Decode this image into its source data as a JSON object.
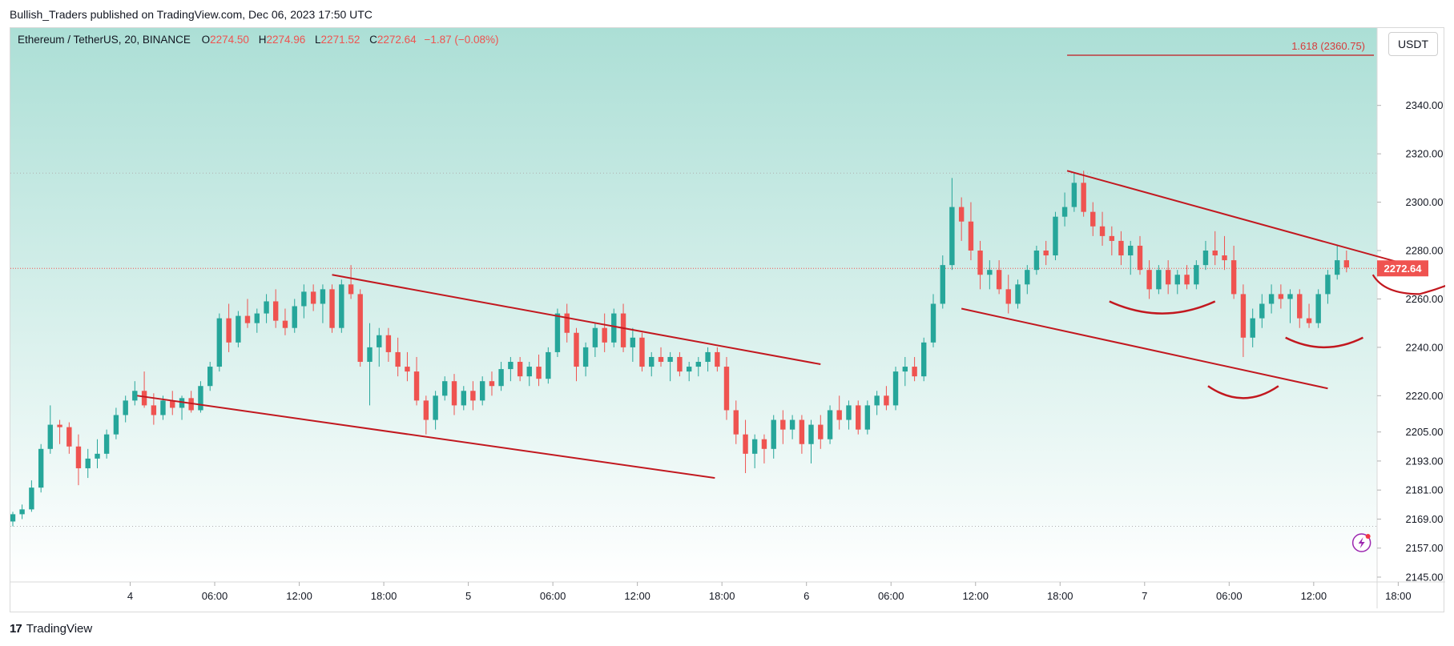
{
  "caption": "Bullish_Traders published on TradingView.com, Dec 06, 2023 17:50 UTC",
  "brand": "TradingView",
  "currency": "USDT",
  "legend": {
    "symbol": "Ethereum / TetherUS, 20, BINANCE",
    "o_label": "O",
    "o_value": "2274.50",
    "h_label": "H",
    "h_value": "2274.96",
    "l_label": "L",
    "l_value": "2271.52",
    "c_label": "C",
    "c_value": "2272.64",
    "change": "−1.87 (−0.08%)"
  },
  "colors": {
    "up": "#26a69a",
    "down": "#ef5350",
    "drawing": "#c2181f",
    "label": "#d63b3b",
    "text": "#131722",
    "grid": "#b0b0b0"
  },
  "chart_data": {
    "type": "candlestick",
    "timeframe": "20",
    "x_ticks": [
      "4",
      "06:00",
      "12:00",
      "18:00",
      "5",
      "06:00",
      "12:00",
      "18:00",
      "6",
      "06:00",
      "12:00",
      "18:00",
      "7",
      "06:00",
      "12:00",
      "18:00"
    ],
    "y_ticks": [
      "2340.00",
      "2320.00",
      "2300.00",
      "2280.00",
      "2260.00",
      "2240.00",
      "2220.00",
      "2205.00",
      "2193.00",
      "2181.00",
      "2169.00",
      "2157.00",
      "2145.00"
    ],
    "ylim": [
      2143,
      2372
    ],
    "xlim_hours": [
      -8.5,
      88.5
    ],
    "last_price": "2272.64",
    "fib_label": "1.618 (2360.75)",
    "fib_level": 2360.75,
    "hlines": [
      2312,
      2272.64,
      2166
    ],
    "candles": [
      {
        "t": -8.33,
        "o": 2168,
        "h": 2172,
        "l": 2166,
        "c": 2171
      },
      {
        "t": -7.67,
        "o": 2171,
        "h": 2175,
        "l": 2169,
        "c": 2173
      },
      {
        "t": -7.0,
        "o": 2173,
        "h": 2185,
        "l": 2172,
        "c": 2182
      },
      {
        "t": -6.33,
        "o": 2182,
        "h": 2200,
        "l": 2180,
        "c": 2198
      },
      {
        "t": -5.67,
        "o": 2198,
        "h": 2216,
        "l": 2196,
        "c": 2208
      },
      {
        "t": -5.0,
        "o": 2208,
        "h": 2210,
        "l": 2200,
        "c": 2207
      },
      {
        "t": -4.33,
        "o": 2207,
        "h": 2209,
        "l": 2196,
        "c": 2199
      },
      {
        "t": -3.67,
        "o": 2199,
        "h": 2204,
        "l": 2183,
        "c": 2190
      },
      {
        "t": -3.0,
        "o": 2190,
        "h": 2198,
        "l": 2186,
        "c": 2194
      },
      {
        "t": -2.33,
        "o": 2194,
        "h": 2202,
        "l": 2190,
        "c": 2196
      },
      {
        "t": -1.67,
        "o": 2196,
        "h": 2206,
        "l": 2194,
        "c": 2204
      },
      {
        "t": -1.0,
        "o": 2204,
        "h": 2215,
        "l": 2202,
        "c": 2212
      },
      {
        "t": -0.33,
        "o": 2212,
        "h": 2220,
        "l": 2209,
        "c": 2218
      },
      {
        "t": 0.33,
        "o": 2218,
        "h": 2226,
        "l": 2216,
        "c": 2222
      },
      {
        "t": 1.0,
        "o": 2222,
        "h": 2230,
        "l": 2215,
        "c": 2216
      },
      {
        "t": 1.67,
        "o": 2216,
        "h": 2221,
        "l": 2208,
        "c": 2212
      },
      {
        "t": 2.33,
        "o": 2212,
        "h": 2220,
        "l": 2210,
        "c": 2218
      },
      {
        "t": 3.0,
        "o": 2218,
        "h": 2222,
        "l": 2212,
        "c": 2215
      },
      {
        "t": 3.67,
        "o": 2215,
        "h": 2220,
        "l": 2210,
        "c": 2219
      },
      {
        "t": 4.33,
        "o": 2219,
        "h": 2222,
        "l": 2213,
        "c": 2214
      },
      {
        "t": 5.0,
        "o": 2214,
        "h": 2226,
        "l": 2213,
        "c": 2224
      },
      {
        "t": 5.67,
        "o": 2224,
        "h": 2234,
        "l": 2222,
        "c": 2232
      },
      {
        "t": 6.33,
        "o": 2232,
        "h": 2254,
        "l": 2230,
        "c": 2252
      },
      {
        "t": 7.0,
        "o": 2252,
        "h": 2258,
        "l": 2238,
        "c": 2242
      },
      {
        "t": 7.67,
        "o": 2242,
        "h": 2255,
        "l": 2240,
        "c": 2253
      },
      {
        "t": 8.33,
        "o": 2253,
        "h": 2260,
        "l": 2248,
        "c": 2250
      },
      {
        "t": 9.0,
        "o": 2250,
        "h": 2256,
        "l": 2246,
        "c": 2254
      },
      {
        "t": 9.67,
        "o": 2254,
        "h": 2262,
        "l": 2250,
        "c": 2259
      },
      {
        "t": 10.33,
        "o": 2259,
        "h": 2264,
        "l": 2248,
        "c": 2251
      },
      {
        "t": 11.0,
        "o": 2251,
        "h": 2256,
        "l": 2245,
        "c": 2248
      },
      {
        "t": 11.67,
        "o": 2248,
        "h": 2260,
        "l": 2246,
        "c": 2257
      },
      {
        "t": 12.33,
        "o": 2257,
        "h": 2266,
        "l": 2252,
        "c": 2263
      },
      {
        "t": 13.0,
        "o": 2263,
        "h": 2266,
        "l": 2255,
        "c": 2258
      },
      {
        "t": 13.67,
        "o": 2258,
        "h": 2266,
        "l": 2250,
        "c": 2264
      },
      {
        "t": 14.33,
        "o": 2264,
        "h": 2266,
        "l": 2246,
        "c": 2248
      },
      {
        "t": 15.0,
        "o": 2248,
        "h": 2268,
        "l": 2246,
        "c": 2266
      },
      {
        "t": 15.67,
        "o": 2266,
        "h": 2274,
        "l": 2260,
        "c": 2262
      },
      {
        "t": 16.33,
        "o": 2262,
        "h": 2264,
        "l": 2232,
        "c": 2234
      },
      {
        "t": 17.0,
        "o": 2234,
        "h": 2250,
        "l": 2216,
        "c": 2240
      },
      {
        "t": 17.67,
        "o": 2240,
        "h": 2248,
        "l": 2232,
        "c": 2245
      },
      {
        "t": 18.33,
        "o": 2245,
        "h": 2248,
        "l": 2234,
        "c": 2238
      },
      {
        "t": 19.0,
        "o": 2238,
        "h": 2244,
        "l": 2228,
        "c": 2232
      },
      {
        "t": 19.67,
        "o": 2232,
        "h": 2238,
        "l": 2226,
        "c": 2230
      },
      {
        "t": 20.33,
        "o": 2230,
        "h": 2236,
        "l": 2216,
        "c": 2218
      },
      {
        "t": 21.0,
        "o": 2218,
        "h": 2220,
        "l": 2204,
        "c": 2210
      },
      {
        "t": 21.67,
        "o": 2210,
        "h": 2222,
        "l": 2206,
        "c": 2220
      },
      {
        "t": 22.33,
        "o": 2220,
        "h": 2228,
        "l": 2218,
        "c": 2226
      },
      {
        "t": 23.0,
        "o": 2226,
        "h": 2229,
        "l": 2212,
        "c": 2216
      },
      {
        "t": 23.67,
        "o": 2216,
        "h": 2224,
        "l": 2214,
        "c": 2222
      },
      {
        "t": 24.33,
        "o": 2222,
        "h": 2226,
        "l": 2214,
        "c": 2218
      },
      {
        "t": 25.0,
        "o": 2218,
        "h": 2228,
        "l": 2216,
        "c": 2226
      },
      {
        "t": 25.67,
        "o": 2226,
        "h": 2230,
        "l": 2220,
        "c": 2224
      },
      {
        "t": 26.33,
        "o": 2224,
        "h": 2234,
        "l": 2222,
        "c": 2231
      },
      {
        "t": 27.0,
        "o": 2231,
        "h": 2236,
        "l": 2226,
        "c": 2234
      },
      {
        "t": 27.67,
        "o": 2234,
        "h": 2236,
        "l": 2226,
        "c": 2228
      },
      {
        "t": 28.33,
        "o": 2228,
        "h": 2234,
        "l": 2224,
        "c": 2232
      },
      {
        "t": 29.0,
        "o": 2232,
        "h": 2237,
        "l": 2224,
        "c": 2227
      },
      {
        "t": 29.67,
        "o": 2227,
        "h": 2240,
        "l": 2225,
        "c": 2238
      },
      {
        "t": 30.33,
        "o": 2238,
        "h": 2256,
        "l": 2236,
        "c": 2254
      },
      {
        "t": 31.0,
        "o": 2254,
        "h": 2258,
        "l": 2242,
        "c": 2246
      },
      {
        "t": 31.67,
        "o": 2246,
        "h": 2248,
        "l": 2226,
        "c": 2232
      },
      {
        "t": 32.33,
        "o": 2232,
        "h": 2242,
        "l": 2228,
        "c": 2240
      },
      {
        "t": 33.0,
        "o": 2240,
        "h": 2250,
        "l": 2236,
        "c": 2248
      },
      {
        "t": 33.67,
        "o": 2248,
        "h": 2254,
        "l": 2238,
        "c": 2242
      },
      {
        "t": 34.33,
        "o": 2242,
        "h": 2256,
        "l": 2240,
        "c": 2254
      },
      {
        "t": 35.0,
        "o": 2254,
        "h": 2258,
        "l": 2238,
        "c": 2240
      },
      {
        "t": 35.67,
        "o": 2240,
        "h": 2248,
        "l": 2234,
        "c": 2244
      },
      {
        "t": 36.33,
        "o": 2244,
        "h": 2246,
        "l": 2230,
        "c": 2232
      },
      {
        "t": 37.0,
        "o": 2232,
        "h": 2238,
        "l": 2228,
        "c": 2236
      },
      {
        "t": 37.67,
        "o": 2236,
        "h": 2240,
        "l": 2232,
        "c": 2234
      },
      {
        "t": 38.33,
        "o": 2234,
        "h": 2238,
        "l": 2226,
        "c": 2236
      },
      {
        "t": 39.0,
        "o": 2236,
        "h": 2238,
        "l": 2228,
        "c": 2230
      },
      {
        "t": 39.67,
        "o": 2230,
        "h": 2234,
        "l": 2226,
        "c": 2232
      },
      {
        "t": 40.33,
        "o": 2232,
        "h": 2236,
        "l": 2228,
        "c": 2234
      },
      {
        "t": 41.0,
        "o": 2234,
        "h": 2240,
        "l": 2230,
        "c": 2238
      },
      {
        "t": 41.67,
        "o": 2238,
        "h": 2240,
        "l": 2230,
        "c": 2232
      },
      {
        "t": 42.33,
        "o": 2232,
        "h": 2236,
        "l": 2210,
        "c": 2214
      },
      {
        "t": 43.0,
        "o": 2214,
        "h": 2218,
        "l": 2200,
        "c": 2204
      },
      {
        "t": 43.67,
        "o": 2204,
        "h": 2210,
        "l": 2188,
        "c": 2196
      },
      {
        "t": 44.33,
        "o": 2196,
        "h": 2204,
        "l": 2190,
        "c": 2202
      },
      {
        "t": 45.0,
        "o": 2202,
        "h": 2204,
        "l": 2192,
        "c": 2198
      },
      {
        "t": 45.67,
        "o": 2198,
        "h": 2212,
        "l": 2194,
        "c": 2210
      },
      {
        "t": 46.33,
        "o": 2210,
        "h": 2214,
        "l": 2200,
        "c": 2206
      },
      {
        "t": 47.0,
        "o": 2206,
        "h": 2212,
        "l": 2202,
        "c": 2210
      },
      {
        "t": 47.67,
        "o": 2210,
        "h": 2212,
        "l": 2196,
        "c": 2200
      },
      {
        "t": 48.33,
        "o": 2200,
        "h": 2210,
        "l": 2192,
        "c": 2208
      },
      {
        "t": 49.0,
        "o": 2208,
        "h": 2212,
        "l": 2198,
        "c": 2202
      },
      {
        "t": 49.67,
        "o": 2202,
        "h": 2216,
        "l": 2200,
        "c": 2214
      },
      {
        "t": 50.33,
        "o": 2214,
        "h": 2220,
        "l": 2206,
        "c": 2210
      },
      {
        "t": 51.0,
        "o": 2210,
        "h": 2218,
        "l": 2206,
        "c": 2216
      },
      {
        "t": 51.67,
        "o": 2216,
        "h": 2218,
        "l": 2204,
        "c": 2206
      },
      {
        "t": 52.33,
        "o": 2206,
        "h": 2218,
        "l": 2204,
        "c": 2216
      },
      {
        "t": 53.0,
        "o": 2216,
        "h": 2222,
        "l": 2212,
        "c": 2220
      },
      {
        "t": 53.67,
        "o": 2220,
        "h": 2224,
        "l": 2214,
        "c": 2216
      },
      {
        "t": 54.33,
        "o": 2216,
        "h": 2232,
        "l": 2214,
        "c": 2230
      },
      {
        "t": 55.0,
        "o": 2230,
        "h": 2236,
        "l": 2224,
        "c": 2232
      },
      {
        "t": 55.67,
        "o": 2232,
        "h": 2236,
        "l": 2226,
        "c": 2228
      },
      {
        "t": 56.33,
        "o": 2228,
        "h": 2244,
        "l": 2226,
        "c": 2242
      },
      {
        "t": 57.0,
        "o": 2242,
        "h": 2262,
        "l": 2240,
        "c": 2258
      },
      {
        "t": 57.67,
        "o": 2258,
        "h": 2278,
        "l": 2256,
        "c": 2274
      },
      {
        "t": 58.33,
        "o": 2274,
        "h": 2310,
        "l": 2272,
        "c": 2298
      },
      {
        "t": 59.0,
        "o": 2298,
        "h": 2302,
        "l": 2284,
        "c": 2292
      },
      {
        "t": 59.67,
        "o": 2292,
        "h": 2300,
        "l": 2276,
        "c": 2280
      },
      {
        "t": 60.33,
        "o": 2280,
        "h": 2284,
        "l": 2264,
        "c": 2270
      },
      {
        "t": 61.0,
        "o": 2270,
        "h": 2276,
        "l": 2264,
        "c": 2272
      },
      {
        "t": 61.67,
        "o": 2272,
        "h": 2276,
        "l": 2262,
        "c": 2264
      },
      {
        "t": 62.33,
        "o": 2264,
        "h": 2270,
        "l": 2254,
        "c": 2258
      },
      {
        "t": 63.0,
        "o": 2258,
        "h": 2268,
        "l": 2256,
        "c": 2266
      },
      {
        "t": 63.67,
        "o": 2266,
        "h": 2274,
        "l": 2262,
        "c": 2272
      },
      {
        "t": 64.33,
        "o": 2272,
        "h": 2282,
        "l": 2270,
        "c": 2280
      },
      {
        "t": 65.0,
        "o": 2280,
        "h": 2284,
        "l": 2274,
        "c": 2278
      },
      {
        "t": 65.67,
        "o": 2278,
        "h": 2296,
        "l": 2276,
        "c": 2294
      },
      {
        "t": 66.33,
        "o": 2294,
        "h": 2304,
        "l": 2290,
        "c": 2298
      },
      {
        "t": 67.0,
        "o": 2298,
        "h": 2312,
        "l": 2296,
        "c": 2308
      },
      {
        "t": 67.67,
        "o": 2308,
        "h": 2313,
        "l": 2294,
        "c": 2296
      },
      {
        "t": 68.33,
        "o": 2296,
        "h": 2300,
        "l": 2286,
        "c": 2290
      },
      {
        "t": 69.0,
        "o": 2290,
        "h": 2296,
        "l": 2282,
        "c": 2286
      },
      {
        "t": 69.67,
        "o": 2286,
        "h": 2290,
        "l": 2278,
        "c": 2284
      },
      {
        "t": 70.33,
        "o": 2284,
        "h": 2288,
        "l": 2274,
        "c": 2278
      },
      {
        "t": 71.0,
        "o": 2278,
        "h": 2284,
        "l": 2270,
        "c": 2282
      },
      {
        "t": 71.67,
        "o": 2282,
        "h": 2286,
        "l": 2270,
        "c": 2272
      },
      {
        "t": 72.33,
        "o": 2272,
        "h": 2276,
        "l": 2260,
        "c": 2264
      },
      {
        "t": 73.0,
        "o": 2264,
        "h": 2274,
        "l": 2262,
        "c": 2272
      },
      {
        "t": 73.67,
        "o": 2272,
        "h": 2276,
        "l": 2262,
        "c": 2266
      },
      {
        "t": 74.33,
        "o": 2266,
        "h": 2272,
        "l": 2262,
        "c": 2270
      },
      {
        "t": 75.0,
        "o": 2270,
        "h": 2274,
        "l": 2264,
        "c": 2266
      },
      {
        "t": 75.67,
        "o": 2266,
        "h": 2276,
        "l": 2264,
        "c": 2274
      },
      {
        "t": 76.33,
        "o": 2274,
        "h": 2284,
        "l": 2272,
        "c": 2280
      },
      {
        "t": 77.0,
        "o": 2280,
        "h": 2288,
        "l": 2274,
        "c": 2278
      },
      {
        "t": 77.67,
        "o": 2278,
        "h": 2286,
        "l": 2272,
        "c": 2276
      },
      {
        "t": 78.33,
        "o": 2276,
        "h": 2282,
        "l": 2260,
        "c": 2262
      },
      {
        "t": 79.0,
        "o": 2262,
        "h": 2266,
        "l": 2236,
        "c": 2244
      },
      {
        "t": 79.67,
        "o": 2244,
        "h": 2256,
        "l": 2240,
        "c": 2252
      },
      {
        "t": 80.33,
        "o": 2252,
        "h": 2262,
        "l": 2248,
        "c": 2258
      },
      {
        "t": 81.0,
        "o": 2258,
        "h": 2266,
        "l": 2254,
        "c": 2262
      },
      {
        "t": 81.67,
        "o": 2262,
        "h": 2266,
        "l": 2256,
        "c": 2260
      },
      {
        "t": 82.33,
        "o": 2260,
        "h": 2264,
        "l": 2250,
        "c": 2262
      },
      {
        "t": 83.0,
        "o": 2262,
        "h": 2264,
        "l": 2248,
        "c": 2252
      },
      {
        "t": 83.67,
        "o": 2252,
        "h": 2258,
        "l": 2248,
        "c": 2250
      },
      {
        "t": 84.33,
        "o": 2250,
        "h": 2264,
        "l": 2248,
        "c": 2262
      },
      {
        "t": 85.0,
        "o": 2262,
        "h": 2272,
        "l": 2258,
        "c": 2270
      },
      {
        "t": 85.67,
        "o": 2270,
        "h": 2282,
        "l": 2268,
        "c": 2276
      },
      {
        "t": 86.33,
        "o": 2276,
        "h": 2280,
        "l": 2271,
        "c": 2273
      }
    ],
    "drawings": {
      "trendlines": [
        {
          "t1": 14.33,
          "p1": 2270,
          "t2": 49.0,
          "p2": 2233
        },
        {
          "t1": 0.5,
          "p1": 2220,
          "t2": 41.5,
          "p2": 2186
        },
        {
          "t1": 59.0,
          "p1": 2256,
          "t2": 85.0,
          "p2": 2223
        },
        {
          "t1": 66.5,
          "p1": 2313,
          "t2": 92.0,
          "p2": 2272
        }
      ],
      "arcs": [
        {
          "ta": 69.5,
          "pa": 2259,
          "tb": 77.0,
          "pb": 2259,
          "depth": 5
        },
        {
          "ta": 76.5,
          "pa": 2224,
          "tb": 81.5,
          "pb": 2224,
          "depth": 5
        },
        {
          "ta": 82.0,
          "pa": 2244,
          "tb": 87.5,
          "pb": 2244,
          "depth": 4
        }
      ],
      "projection": [
        {
          "t": 88.2,
          "p": 2270
        },
        {
          "t": 89.0,
          "p": 2262
        },
        {
          "t": 91.5,
          "p": 2262
        },
        {
          "t": 100.0,
          "p": 2275
        },
        {
          "t": 104.5,
          "p": 2330
        },
        {
          "t": 107.0,
          "p": 2361
        }
      ]
    }
  }
}
